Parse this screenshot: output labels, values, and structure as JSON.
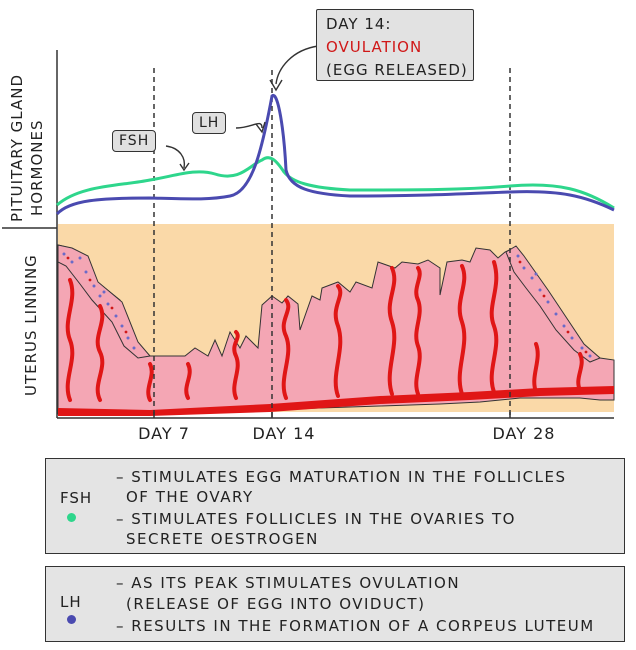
{
  "axis_labels": {
    "top": [
      "PITUITARY GLAND",
      "HORMONES"
    ],
    "bottom": "UTERUS LINNING"
  },
  "days": [
    "DAY 7",
    "DAY 14",
    "DAY 28"
  ],
  "tags": {
    "fsh": "FSH",
    "lh": "LH"
  },
  "callout": {
    "line1": "DAY 14:",
    "line2": "OVULATION",
    "line3": "(EGG RELEASED)"
  },
  "legend": {
    "fsh": {
      "name": "FSH",
      "lines": [
        "– STIMULATES EGG MATURATION IN THE FOLLICLES",
        "OF THE OVARY",
        "– STIMULATES FOLLICLES IN THE OVARIES TO",
        "SECRETE OESTROGEN"
      ]
    },
    "lh": {
      "name": "LH",
      "lines": [
        "– AS ITS PEAK STIMULATES OVULATION",
        "(RELEASE OF EGG INTO OVIDUCT)",
        "– RESULTS IN THE FORMATION OF A CORPEUS LUTEUM"
      ]
    }
  },
  "colors": {
    "fsh": "#2ed68c",
    "lh": "#4a4ab0",
    "lining": "#f4a6b4",
    "background_band": "#fad9a8",
    "vessel": "#e01616",
    "callout_red": "#d01818"
  }
}
